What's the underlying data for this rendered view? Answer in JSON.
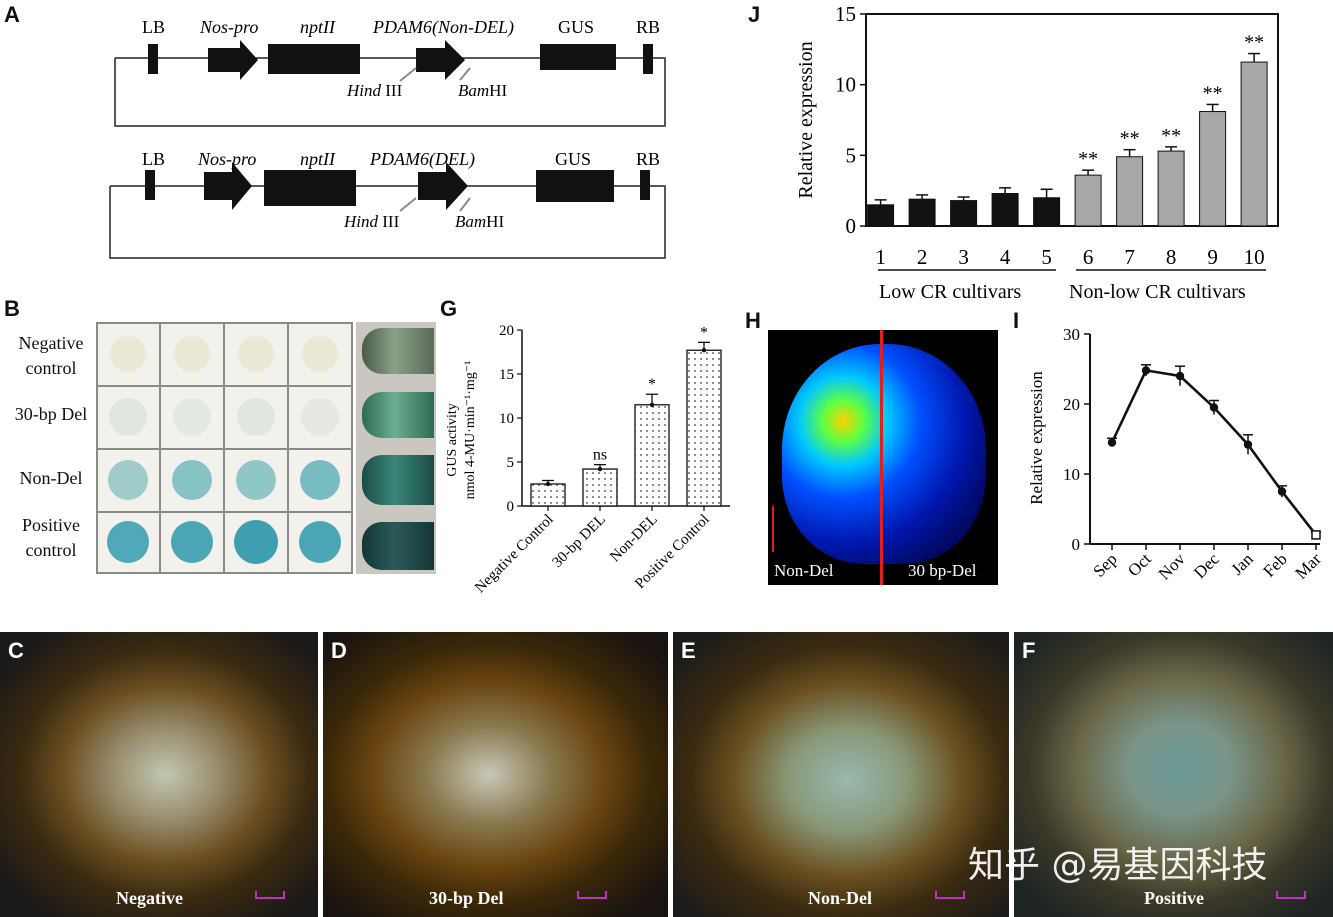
{
  "panels": {
    "A": "A",
    "B": "B",
    "C": "C",
    "D": "D",
    "E": "E",
    "F": "F",
    "G": "G",
    "H": "H",
    "I": "I",
    "J": "J"
  },
  "construct_top": {
    "LB": "LB",
    "nos": "Nos-pro",
    "npt": "nptII",
    "pdam": "PDAM6(Non-DEL)",
    "gus": "GUS",
    "rb": "RB",
    "hind": "Hind",
    "hind2": " III",
    "bam": "Bam",
    "bam2": "HI"
  },
  "construct_bottom": {
    "LB": "LB",
    "nos": "Nos-pro",
    "npt": "nptII",
    "pdam": "PDAM6(DEL)",
    "gus": "GUS",
    "rb": "RB",
    "hind": "Hind",
    "hind2": " III",
    "bam": "Bam",
    "bam2": "HI"
  },
  "plate_rows": [
    "Negative control",
    "30-bp Del",
    "Non-Del",
    "Positive control"
  ],
  "plate_row_lines": [
    [
      "Negative",
      "control"
    ],
    [
      "30-bp Del"
    ],
    [
      "Non-Del"
    ],
    [
      "Positive",
      "control"
    ]
  ],
  "colors": {
    "bar_low": "#111111",
    "bar_high": "#a8a8a8",
    "red_line": "#e02020",
    "scale_bar": "#c030c0"
  },
  "chart_data": [
    {
      "id": "G",
      "type": "bar",
      "ylabel_line1": "GUS activity",
      "ylabel_line2": "nmol 4-MU·min⁻¹·mg⁻¹",
      "categories": [
        "Negative Control",
        "30-bp DEL",
        "Non-DEL",
        "Positive Control"
      ],
      "values": [
        2.5,
        4.2,
        11.5,
        17.7
      ],
      "errors": [
        0.4,
        0.5,
        1.2,
        0.9
      ],
      "annotations": [
        "",
        "ns",
        "*",
        "*"
      ],
      "ylim": [
        0,
        20
      ],
      "yticks": [
        "0",
        "5",
        "10",
        "15",
        "20"
      ]
    },
    {
      "id": "J",
      "type": "bar",
      "ylabel": "Relative expression",
      "categories": [
        "1",
        "2",
        "3",
        "4",
        "5",
        "6",
        "7",
        "8",
        "9",
        "10"
      ],
      "values": [
        1.5,
        1.9,
        1.8,
        2.3,
        2.0,
        3.6,
        4.9,
        5.3,
        8.1,
        11.6
      ],
      "errors": [
        0.35,
        0.3,
        0.25,
        0.4,
        0.6,
        0.35,
        0.5,
        0.3,
        0.5,
        0.6
      ],
      "annotations": [
        "",
        "",
        "",
        "",
        "",
        "**",
        "**",
        "**",
        "**",
        "**"
      ],
      "groups": [
        "Low CR cultivars",
        "Non-low CR cultivars"
      ],
      "ylim": [
        0,
        15
      ],
      "yticks": [
        "0",
        "5",
        "10",
        "15"
      ]
    },
    {
      "id": "I",
      "type": "line",
      "ylabel": "Relative expression",
      "x": [
        "Sep",
        "Oct",
        "Nov",
        "Dec",
        "Jan",
        "Feb",
        "Mar"
      ],
      "values": [
        14.5,
        24.8,
        24.0,
        19.5,
        14.2,
        7.5,
        1.3
      ],
      "errors": [
        0.6,
        0.8,
        1.4,
        1.0,
        1.4,
        0.8,
        0.4
      ],
      "ylim": [
        0,
        30
      ],
      "yticks": [
        "0",
        "10",
        "20",
        "30"
      ]
    }
  ],
  "panel_H": {
    "left": "Non-Del",
    "right": "30 bp-Del"
  },
  "photos": [
    {
      "letter": "C",
      "label": "Negative",
      "tone": "#c0c8b0"
    },
    {
      "letter": "D",
      "label": "30-bp Del",
      "tone": "#c8c8b8"
    },
    {
      "letter": "E",
      "label": "Non-Del",
      "tone": "#98b8b0"
    },
    {
      "letter": "F",
      "label": "Positive",
      "tone": "#6a9a98"
    }
  ],
  "watermark": "知乎 @易基因科技"
}
